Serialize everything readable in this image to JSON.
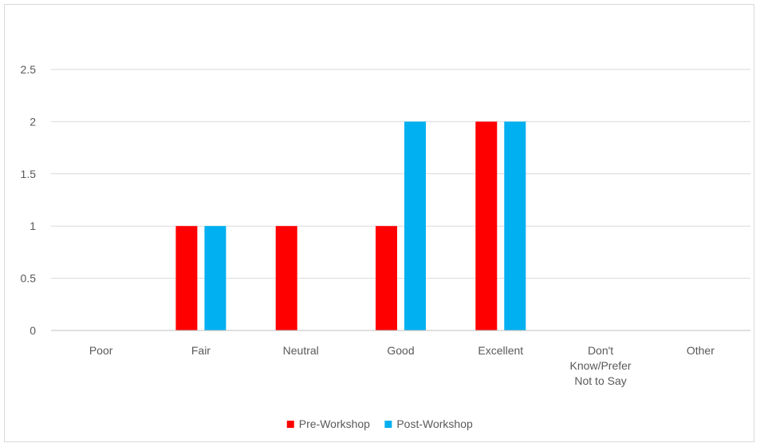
{
  "chart_data": {
    "type": "bar",
    "title": "",
    "xlabel": "",
    "ylabel": "",
    "categories": [
      "Poor",
      "Fair",
      "Neutral",
      "Good",
      "Excellent",
      "Don't Know/Prefer Not to Say",
      "Other"
    ],
    "series": [
      {
        "name": "Pre-Workshop",
        "color": "#ff0000",
        "values": [
          0,
          1,
          1,
          1,
          2,
          0,
          0
        ]
      },
      {
        "name": "Post-Workshop",
        "color": "#00b0f0",
        "values": [
          0,
          1,
          0,
          2,
          2,
          0,
          0
        ]
      }
    ],
    "ylim": [
      0,
      2.5
    ],
    "yticks": [
      "0",
      "0.5",
      "1",
      "1.5",
      "2",
      "2.5"
    ],
    "grid": "horizontal",
    "legend": "bottom",
    "colors": {
      "gridline": "#d9d9d9",
      "axis": "#bfbfbf",
      "text": "#595959"
    }
  }
}
